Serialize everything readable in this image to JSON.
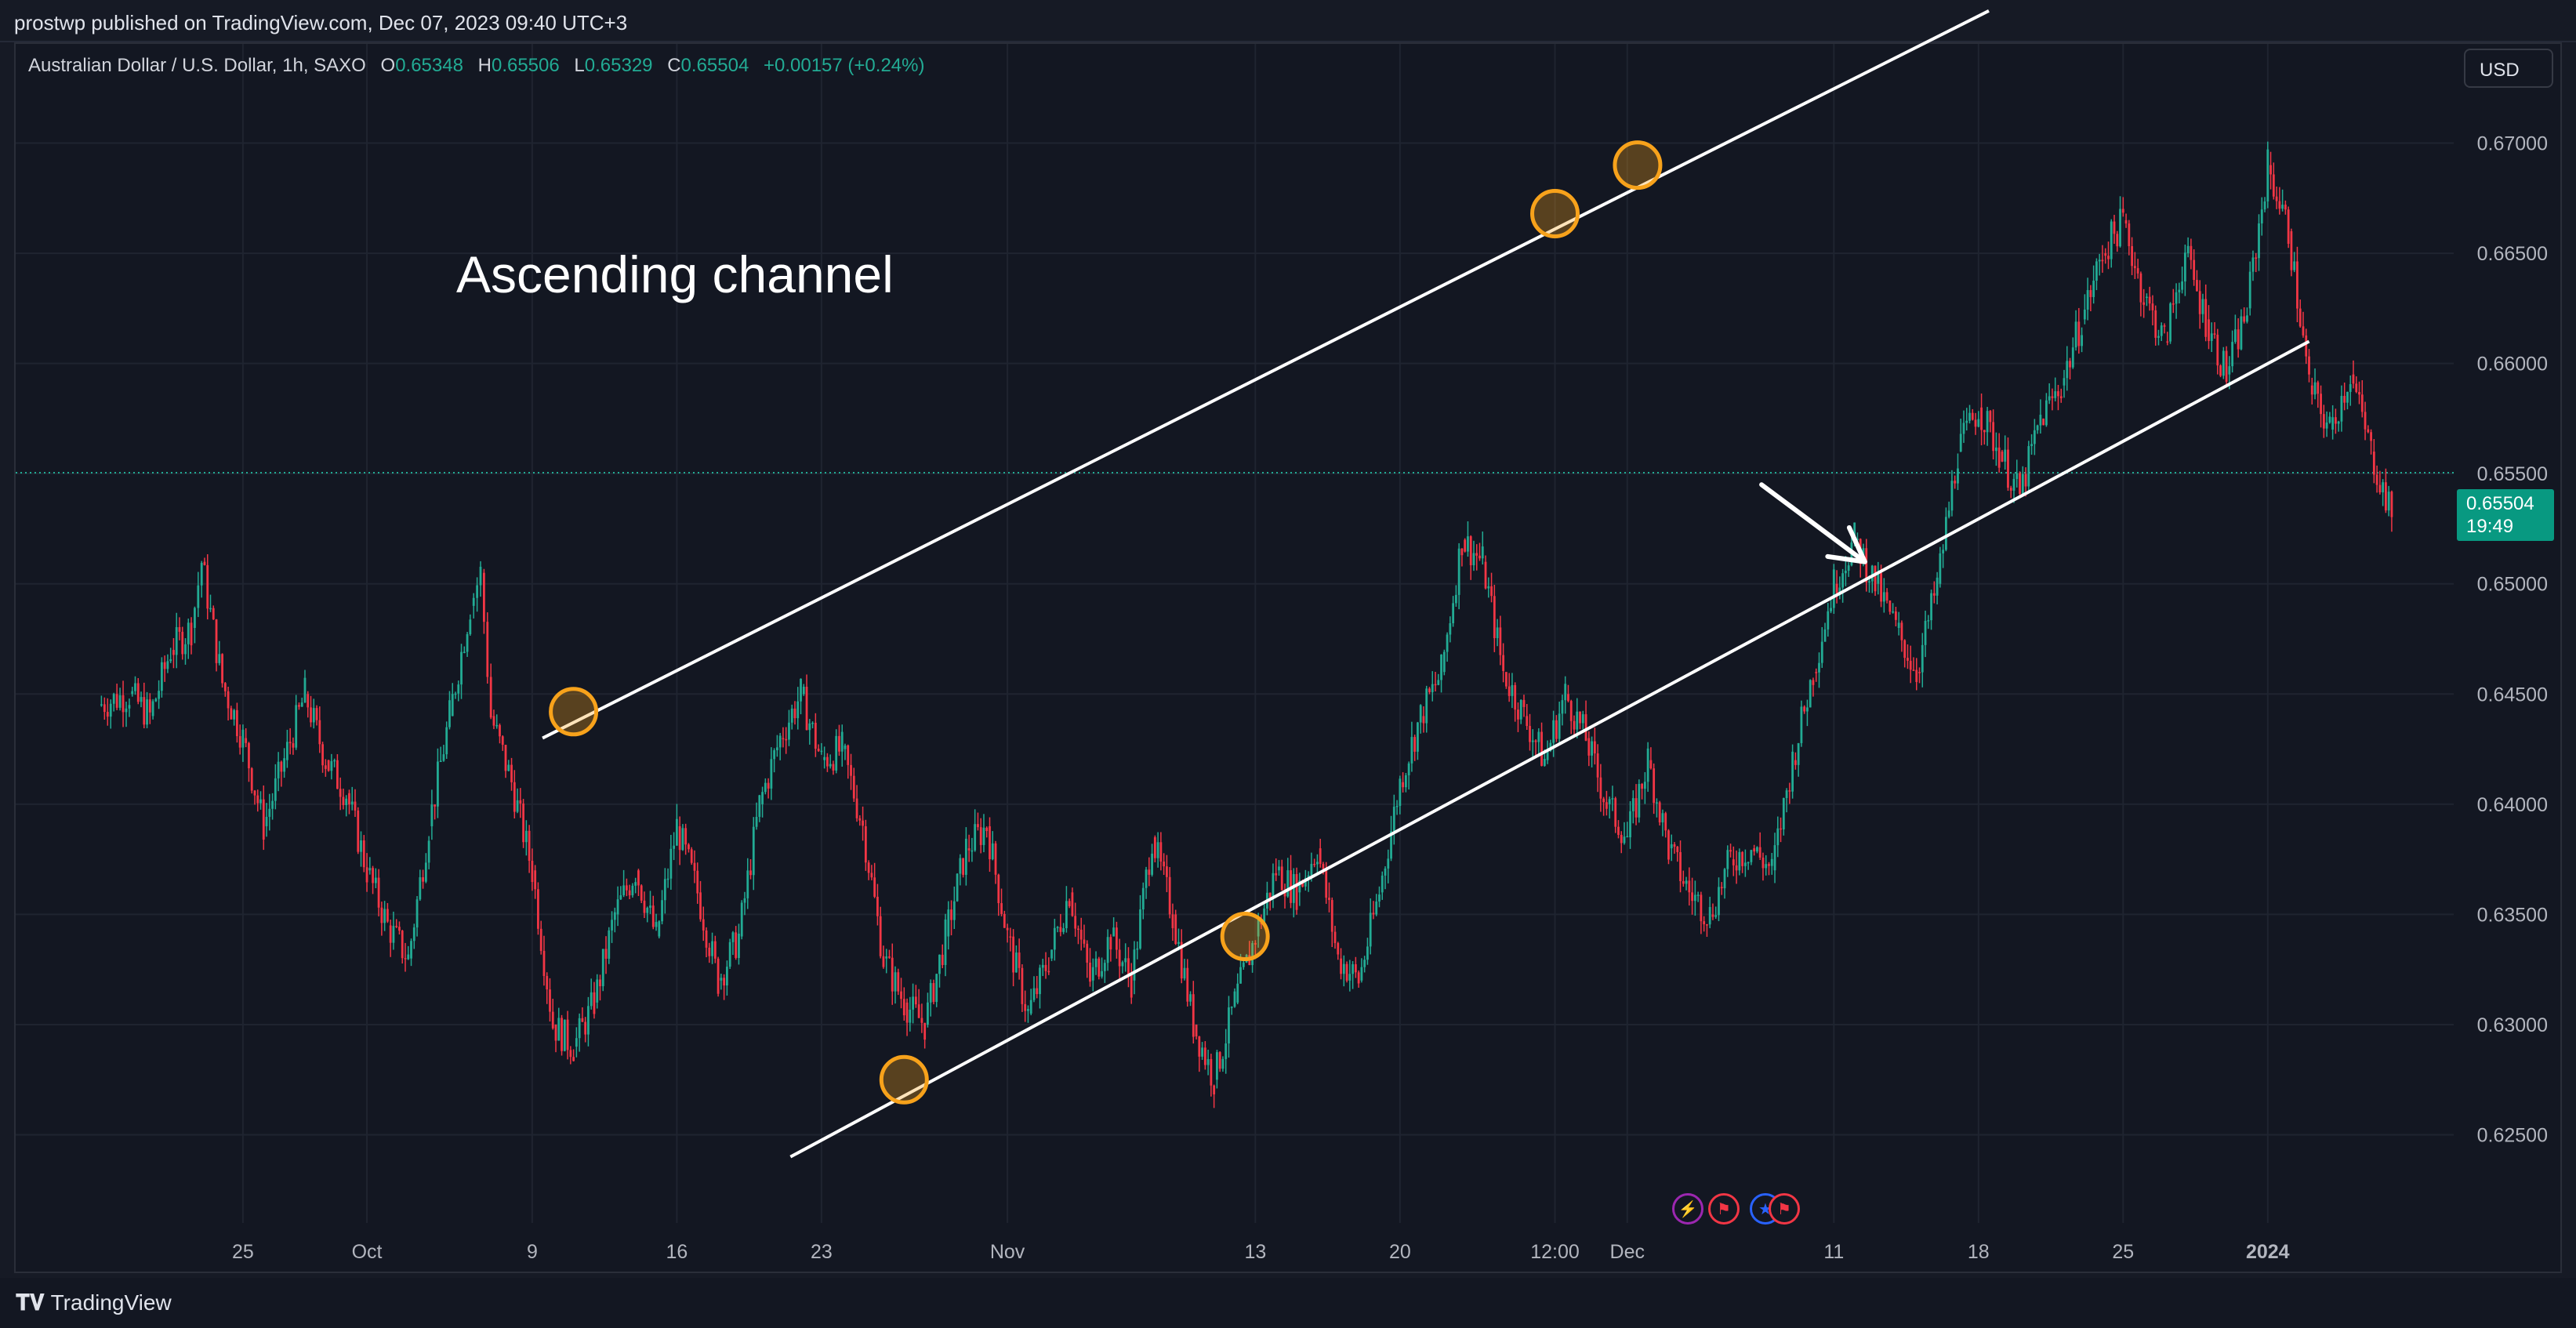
{
  "header": {
    "published_text": "prostwp published on TradingView.com, Dec 07, 2023 09:40 UTC+3"
  },
  "legend": {
    "symbol": "Australian Dollar / U.S. Dollar, 1h, SAXO",
    "open_label": "O",
    "open": "0.65348",
    "high_label": "H",
    "high": "0.65506",
    "low_label": "L",
    "low": "0.65329",
    "close_label": "C",
    "close": "0.65504",
    "change": "+0.00157 (+0.24%)"
  },
  "currency_button": "USD",
  "price_label": {
    "price": "0.65504",
    "countdown": "19:49"
  },
  "annotation": {
    "text": "Ascending channel"
  },
  "footer": {
    "brand": "TradingView"
  },
  "colors": {
    "background": "#131722",
    "up": "#22ab94",
    "down": "#f23645",
    "marker": "#f7a21b",
    "channel": "#ffffff",
    "price_tag": "#089981"
  },
  "events": [
    {
      "icon": "lightning-icon",
      "color": "#9c27b0"
    },
    {
      "icon": "us-flag-icon",
      "color": "#f23645"
    },
    {
      "icon": "au-flag-icon",
      "color": "#2962ff"
    },
    {
      "icon": "us-flag-icon",
      "color": "#f23645"
    }
  ],
  "chart_data": {
    "type": "candlestick",
    "symbol": "AUDUSD",
    "timeframe": "1h",
    "ylim": [
      0.621,
      0.6745
    ],
    "x_tick_labels": [
      "25",
      "Oct",
      "9",
      "16",
      "23",
      "Nov",
      "13",
      "20",
      "12:00",
      "Dec",
      "11",
      "18",
      "25",
      "2024"
    ],
    "y_tick_labels": [
      "0.62500",
      "0.63000",
      "0.63500",
      "0.64000",
      "0.64500",
      "0.65000",
      "0.65500",
      "0.66000",
      "0.66500",
      "0.67000"
    ],
    "y_ticks": [
      0.625,
      0.63,
      0.635,
      0.64,
      0.645,
      0.65,
      0.655,
      0.66,
      0.665,
      0.67
    ],
    "x_ticks": [
      "2023-09-25",
      "2023-10-01",
      "2023-10-09",
      "2023-10-16",
      "2023-10-23",
      "2023-11-01",
      "2023-11-13",
      "2023-11-20",
      "2023-11-27 12:00",
      "2023-12-01",
      "2023-12-11",
      "2023-12-18",
      "2023-12-25",
      "2024-01-01"
    ],
    "grid": true,
    "last_price": 0.65504,
    "price_path": [
      [
        "2023-09-18 00:00",
        0.6445
      ],
      [
        "2023-09-19 12:00",
        0.645
      ],
      [
        "2023-09-20 12:00",
        0.644
      ],
      [
        "2023-09-21 12:00",
        0.647
      ],
      [
        "2023-09-22 12:00",
        0.648
      ],
      [
        "2023-09-23 00:00",
        0.651
      ],
      [
        "2023-09-24 00:00",
        0.6455
      ],
      [
        "2023-09-25 00:00",
        0.643
      ],
      [
        "2023-09-26 00:00",
        0.639
      ],
      [
        "2023-09-27 00:00",
        0.642
      ],
      [
        "2023-09-28 00:00",
        0.645
      ],
      [
        "2023-09-29 00:00",
        0.642
      ],
      [
        "2023-09-30 00:00",
        0.6405
      ],
      [
        "2023-10-01 00:00",
        0.637
      ],
      [
        "2023-10-02 00:00",
        0.6345
      ],
      [
        "2023-10-03 00:00",
        0.633
      ],
      [
        "2023-10-04 00:00",
        0.639
      ],
      [
        "2023-10-05 00:00",
        0.644
      ],
      [
        "2023-10-06 00:00",
        0.649
      ],
      [
        "2023-10-06 12:00",
        0.6505
      ],
      [
        "2023-10-07 00:00",
        0.644
      ],
      [
        "2023-10-08 00:00",
        0.641
      ],
      [
        "2023-10-09 00:00",
        0.637
      ],
      [
        "2023-10-10 00:00",
        0.63
      ],
      [
        "2023-10-11 00:00",
        0.629
      ],
      [
        "2023-10-12 00:00",
        0.631
      ],
      [
        "2023-10-13 00:00",
        0.635
      ],
      [
        "2023-10-14 00:00",
        0.637
      ],
      [
        "2023-10-15 00:00",
        0.634
      ],
      [
        "2023-10-16 00:00",
        0.639
      ],
      [
        "2023-10-17 00:00",
        0.636
      ],
      [
        "2023-10-18 00:00",
        0.632
      ],
      [
        "2023-10-19 00:00",
        0.634
      ],
      [
        "2023-10-20 00:00",
        0.64
      ],
      [
        "2023-10-21 00:00",
        0.643
      ],
      [
        "2023-10-22 00:00",
        0.645
      ],
      [
        "2023-10-23 00:00",
        0.642
      ],
      [
        "2023-10-24 00:00",
        0.6425
      ],
      [
        "2023-10-25 00:00",
        0.639
      ],
      [
        "2023-10-26 00:00",
        0.633
      ],
      [
        "2023-10-27 00:00",
        0.631
      ],
      [
        "2023-10-28 00:00",
        0.63
      ],
      [
        "2023-10-29 00:00",
        0.634
      ],
      [
        "2023-10-30 00:00",
        0.638
      ],
      [
        "2023-10-31 00:00",
        0.639
      ],
      [
        "2023-11-01 00:00",
        0.634
      ],
      [
        "2023-11-02 00:00",
        0.6305
      ],
      [
        "2023-11-03 00:00",
        0.633
      ],
      [
        "2023-11-04 00:00",
        0.636
      ],
      [
        "2023-11-05 00:00",
        0.632
      ],
      [
        "2023-11-06 00:00",
        0.634
      ],
      [
        "2023-11-07 00:00",
        0.632
      ],
      [
        "2023-11-08 00:00",
        0.6385
      ],
      [
        "2023-11-09 00:00",
        0.635
      ],
      [
        "2023-11-10 00:00",
        0.63
      ],
      [
        "2023-11-11 00:00",
        0.6275
      ],
      [
        "2023-11-12 00:00",
        0.631
      ],
      [
        "2023-11-13 00:00",
        0.634
      ],
      [
        "2023-11-14 00:00",
        0.637
      ],
      [
        "2023-11-15 00:00",
        0.636
      ],
      [
        "2023-11-16 00:00",
        0.638
      ],
      [
        "2023-11-17 00:00",
        0.633
      ],
      [
        "2023-11-18 00:00",
        0.632
      ],
      [
        "2023-11-19 00:00",
        0.636
      ],
      [
        "2023-11-20 00:00",
        0.641
      ],
      [
        "2023-11-21 00:00",
        0.644
      ],
      [
        "2023-11-22 00:00",
        0.646
      ],
      [
        "2023-11-23 00:00",
        0.652
      ],
      [
        "2023-11-24 00:00",
        0.651
      ],
      [
        "2023-11-25 00:00",
        0.646
      ],
      [
        "2023-11-26 00:00",
        0.644
      ],
      [
        "2023-11-27 00:00",
        0.642
      ],
      [
        "2023-11-28 00:00",
        0.645
      ],
      [
        "2023-11-29 00:00",
        0.643
      ],
      [
        "2023-11-30 00:00",
        0.64
      ],
      [
        "2023-12-01 00:00",
        0.6385
      ],
      [
        "2023-12-02 00:00",
        0.642
      ],
      [
        "2023-12-03 00:00",
        0.638
      ],
      [
        "2023-12-04 00:00",
        0.636
      ],
      [
        "2023-12-05 00:00",
        0.635
      ],
      [
        "2023-12-06 00:00",
        0.6375
      ],
      [
        "2023-12-07 00:00",
        0.638
      ],
      [
        "2023-12-08 00:00",
        0.637
      ],
      [
        "2023-12-09 00:00",
        0.642
      ],
      [
        "2023-12-10 00:00",
        0.646
      ],
      [
        "2023-12-11 00:00",
        0.65
      ],
      [
        "2023-12-12 00:00",
        0.652
      ],
      [
        "2023-12-13 00:00",
        0.65
      ],
      [
        "2023-12-14 00:00",
        0.648
      ],
      [
        "2023-12-15 00:00",
        0.646
      ],
      [
        "2023-12-16 00:00",
        0.65
      ],
      [
        "2023-12-17 00:00",
        0.656
      ],
      [
        "2023-12-18 00:00",
        0.658
      ],
      [
        "2023-12-19 00:00",
        0.656
      ],
      [
        "2023-12-20 00:00",
        0.654
      ],
      [
        "2023-12-21 00:00",
        0.6575
      ],
      [
        "2023-12-22 00:00",
        0.659
      ],
      [
        "2023-12-23 00:00",
        0.662
      ],
      [
        "2023-12-24 00:00",
        0.665
      ],
      [
        "2023-12-25 00:00",
        0.6665
      ],
      [
        "2023-12-26 00:00",
        0.663
      ],
      [
        "2023-12-27 00:00",
        0.661
      ],
      [
        "2023-12-28 00:00",
        0.665
      ],
      [
        "2023-12-29 00:00",
        0.662
      ],
      [
        "2023-12-30 00:00",
        0.6595
      ],
      [
        "2023-12-31 00:00",
        0.6625
      ],
      [
        "2024-01-01 00:00",
        0.669
      ],
      [
        "2024-01-02 00:00",
        0.666
      ],
      [
        "2024-01-03 00:00",
        0.659
      ],
      [
        "2024-01-04 00:00",
        0.657
      ],
      [
        "2024-01-05 00:00",
        0.6595
      ],
      [
        "2024-01-06 00:00",
        0.656
      ],
      [
        "2024-01-07 00:00",
        0.653
      ]
    ],
    "drawings": {
      "upper_channel_line": {
        "from": [
          "2023-10-09 12:00",
          0.643
        ],
        "to": [
          "2023-12-18 12:00",
          0.676
        ]
      },
      "lower_channel_line": {
        "from": [
          "2023-10-21 12:00",
          0.624
        ],
        "to": [
          "2024-01-03 00:00",
          0.661
        ]
      },
      "touch_markers": [
        [
          "2023-10-11 00:00",
          0.6442
        ],
        [
          "2023-10-27 00:00",
          0.6275
        ],
        [
          "2023-11-12 12:00",
          0.634
        ],
        [
          "2023-11-27 12:00",
          0.6668
        ],
        [
          "2023-12-01 12:00",
          0.669
        ]
      ],
      "projection_arrow": {
        "from": [
          "2023-12-07 12:00",
          0.6545
        ],
        "to": [
          "2023-12-12 12:00",
          0.651
        ]
      }
    }
  }
}
